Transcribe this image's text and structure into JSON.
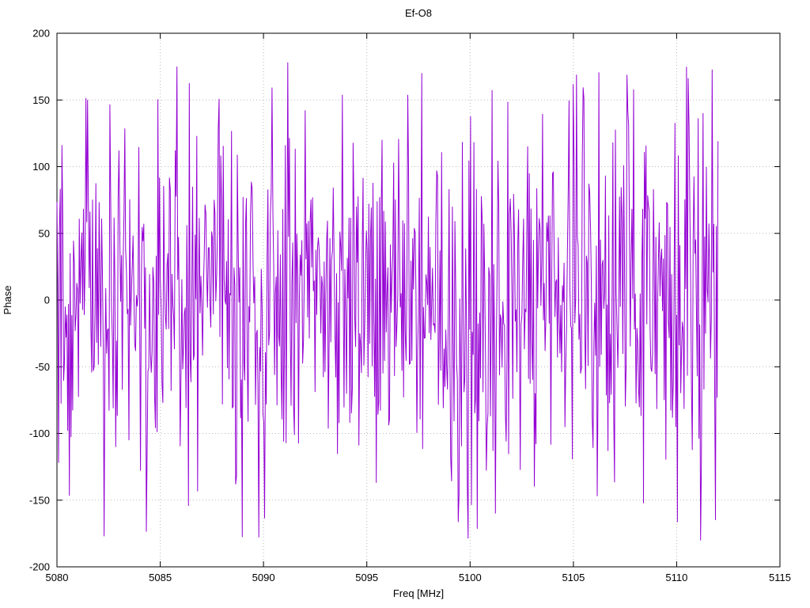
{
  "title": "Ef-O8",
  "chart_data": {
    "type": "line",
    "title": "Ef-O8",
    "xlabel": "Freq [MHz]",
    "ylabel": "Phase",
    "xlim": [
      5080,
      5115
    ],
    "ylim": [
      -200,
      200
    ],
    "x_ticks": [
      5080,
      5085,
      5090,
      5095,
      5100,
      5105,
      5110,
      5115
    ],
    "y_ticks": [
      -200,
      -150,
      -100,
      -50,
      0,
      50,
      100,
      150,
      200
    ],
    "grid": "dotted",
    "legend": "none",
    "line_color": "#9400D3",
    "series": [
      {
        "name": "phase",
        "x_start": 5080,
        "x_end": 5112,
        "n_points": 800,
        "description": "wrapped interferometric phase noise in degrees, roughly zero-mean, bounded at +/-180; excursions become denser and more full-range above ~5099 MHz; no data plotted between 5112 and 5115 MHz",
        "seed": 1234,
        "base_sigma": 55,
        "high_region_start": 5099,
        "high_region_sigma_scale": 1.25,
        "spike_probability_low": 0.15,
        "spike_probability_high": 0.32,
        "spike_range": 180,
        "y_clamp": 180
      }
    ]
  }
}
